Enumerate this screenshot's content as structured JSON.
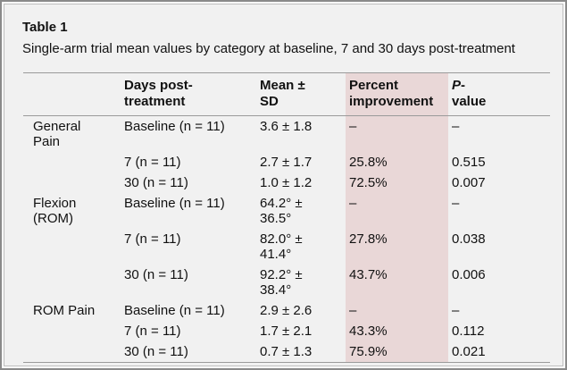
{
  "table": {
    "title": "Table 1",
    "caption": "Single-arm trial mean values by category at baseline, 7 and 30 days post-treatment",
    "headers": {
      "category": "",
      "days_line1": "Days post-",
      "days_line2": "treatment",
      "mean_line1": "Mean ±",
      "mean_line2": "SD",
      "percent_line1": "Percent",
      "percent_line2": "improvement",
      "pvalue_italic": "P",
      "pvalue_dash": "-",
      "pvalue_line2": "value"
    },
    "rows": [
      {
        "category_line1": "General",
        "category_line2": "Pain",
        "days": "Baseline (n = 11)",
        "mean_line1": "3.6 ± 1.8",
        "mean_line2": "",
        "percent": "–",
        "pvalue": "–"
      },
      {
        "category_line1": "",
        "category_line2": "",
        "days": "7 (n = 11)",
        "mean_line1": "2.7 ± 1.7",
        "mean_line2": "",
        "percent": "25.8%",
        "pvalue": "0.515"
      },
      {
        "category_line1": "",
        "category_line2": "",
        "days": "30 (n = 11)",
        "mean_line1": "1.0 ± 1.2",
        "mean_line2": "",
        "percent": "72.5%",
        "pvalue": "0.007"
      },
      {
        "category_line1": "Flexion",
        "category_line2": "(ROM)",
        "days": "Baseline (n = 11)",
        "mean_line1": "64.2° ±",
        "mean_line2": "36.5°",
        "percent": "–",
        "pvalue": "–"
      },
      {
        "category_line1": "",
        "category_line2": "",
        "days": "7 (n = 11)",
        "mean_line1": "82.0° ±",
        "mean_line2": "41.4°",
        "percent": "27.8%",
        "pvalue": "0.038"
      },
      {
        "category_line1": "",
        "category_line2": "",
        "days": "30 (n = 11)",
        "mean_line1": "92.2° ±",
        "mean_line2": "38.4°",
        "percent": "43.7%",
        "pvalue": "0.006"
      },
      {
        "category_line1": "ROM Pain",
        "category_line2": "",
        "days": "Baseline (n = 11)",
        "mean_line1": "2.9 ± 2.6",
        "mean_line2": "",
        "percent": "–",
        "pvalue": "–"
      },
      {
        "category_line1": "",
        "category_line2": "",
        "days": "7 (n = 11)",
        "mean_line1": "1.7 ± 2.1",
        "mean_line2": "",
        "percent": "43.3%",
        "pvalue": "0.112"
      },
      {
        "category_line1": "",
        "category_line2": "",
        "days": "30 (n = 11)",
        "mean_line1": "0.7 ± 1.3",
        "mean_line2": "",
        "percent": "75.9%",
        "pvalue": "0.021"
      }
    ]
  }
}
